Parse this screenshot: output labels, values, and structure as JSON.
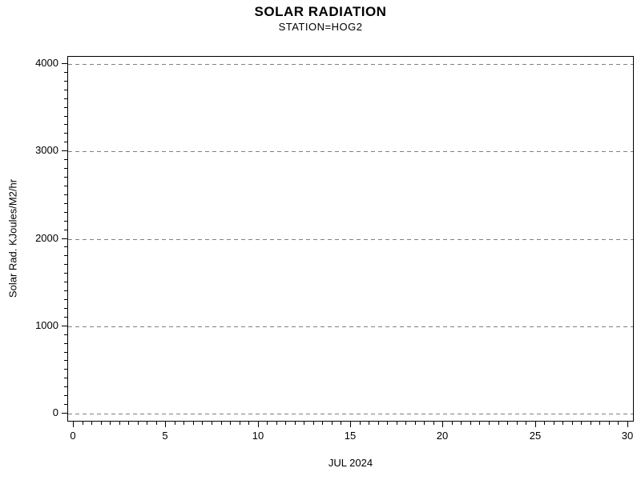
{
  "chart_data": {
    "type": "line",
    "title": "SOLAR RADIATION",
    "subtitle": "STATION=HOG2",
    "xlabel": "JUL 2024",
    "ylabel": "Solar Rad. KJoules/M2/hr",
    "xlim": [
      0,
      30
    ],
    "ylim": [
      0,
      4000
    ],
    "x_major_ticks": [
      0,
      5,
      10,
      15,
      20,
      25,
      30
    ],
    "x_minor_step": 0.5,
    "y_major_ticks": [
      0,
      1000,
      2000,
      3000,
      4000
    ],
    "y_minor_step": 100,
    "grid": "horizontal dashed lines at y major ticks",
    "legend": "none",
    "frame": "full box",
    "series": [],
    "note": "empty plot - no data points rendered"
  },
  "colors": {
    "background": "#ffffff",
    "frame": "#000000",
    "grid": "#808080",
    "text": "#000000"
  }
}
